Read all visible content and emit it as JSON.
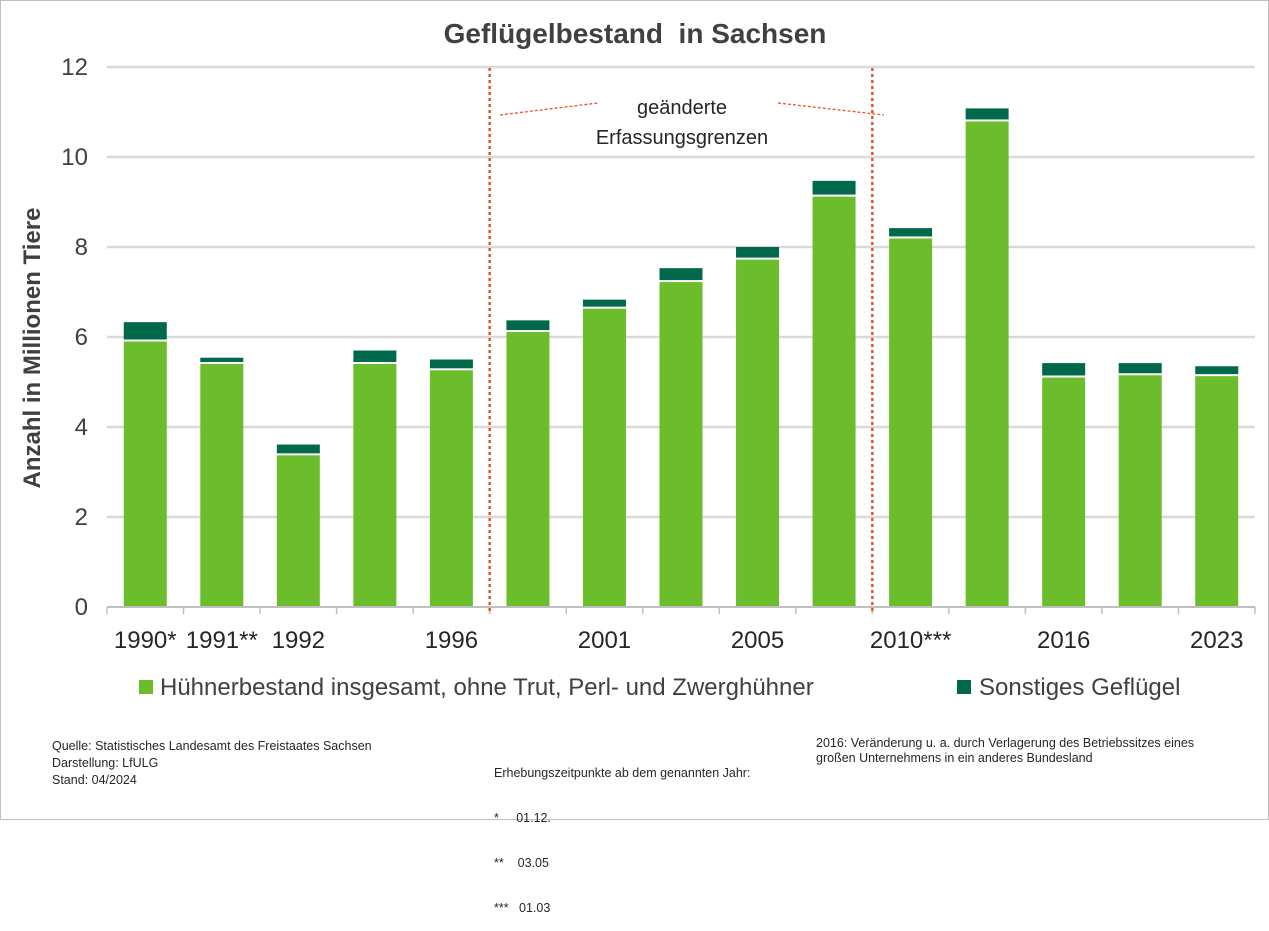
{
  "chart_data": {
    "type": "bar",
    "stacked": true,
    "title": "Geflügelbestand  in Sachsen",
    "ylabel": "Anzahl in Millionen Tiere",
    "xlabel": "",
    "ylim": [
      0,
      12
    ],
    "yticks": [
      0,
      2,
      4,
      6,
      8,
      10,
      12
    ],
    "grid": true,
    "legend_position": "bottom",
    "bar_count": 15,
    "x_tick_labels": [
      {
        "label": "1990*",
        "at": 0
      },
      {
        "label": "1991**",
        "at": 1
      },
      {
        "label": "1992",
        "at": 2
      },
      {
        "label": "1996",
        "at": 4
      },
      {
        "label": "2001",
        "at": 6
      },
      {
        "label": "2005",
        "at": 8
      },
      {
        "label": "2010***",
        "at": 10
      },
      {
        "label": "2016",
        "at": 12
      },
      {
        "label": "2023",
        "at": 14
      }
    ],
    "series": [
      {
        "name": "Hühnerbestand insgesamt, ohne Trut, Perl- und Zwerghühner",
        "color": "#6cbd2b",
        "values": [
          5.9,
          5.4,
          3.37,
          5.4,
          5.26,
          6.11,
          6.63,
          7.22,
          7.72,
          9.12,
          8.19,
          10.79,
          5.1,
          5.15,
          5.13
        ]
      },
      {
        "name": "Sonstiges Geflügel",
        "color": "#00694b",
        "values": [
          0.43,
          0.14,
          0.24,
          0.3,
          0.24,
          0.26,
          0.2,
          0.31,
          0.28,
          0.35,
          0.23,
          0.29,
          0.32,
          0.27,
          0.22
        ]
      }
    ],
    "dividers_after_bar": [
      4,
      9
    ],
    "annotation": {
      "line1": "geänderte",
      "line2": "Erfassungsgrenzen"
    }
  },
  "footer": {
    "left": [
      "Quelle: Statistisches Landesamt des Freistaates Sachsen",
      "Darstellung: LfULG",
      "Stand: 04/2024"
    ],
    "middle": [
      "Erhebungszeitpunkte ab dem genannten Jahr:",
      "*     01.12.",
      "**    03.05",
      "***   01.03"
    ],
    "right": [
      "2016: Veränderung u. a. durch Verlagerung des Betriebssitzes eines",
      "großen Unternehmens in ein anderes Bundesland"
    ]
  },
  "colors": {
    "accent_red": "#e8542a",
    "grid": "#d9d9d9",
    "text": "#404040"
  }
}
